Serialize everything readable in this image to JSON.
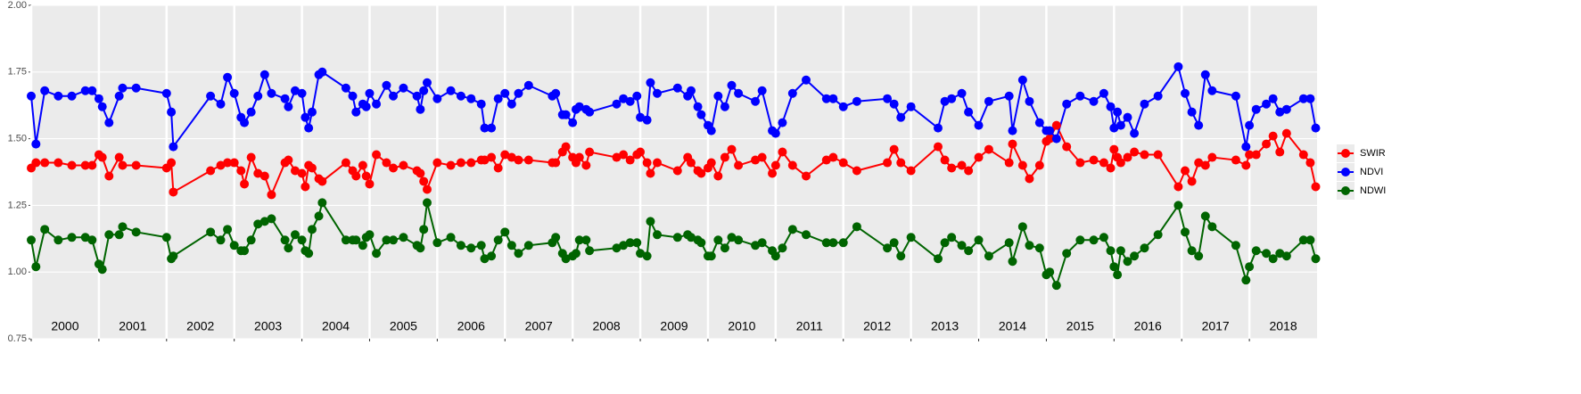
{
  "chart_data": {
    "type": "line",
    "x": [
      2000,
      2000.07,
      2000.2,
      2000.4,
      2000.6,
      2000.8,
      2000.9,
      2001,
      2001.05,
      2001.15,
      2001.3,
      2001.35,
      2001.55,
      2002,
      2002.07,
      2002.1,
      2002.65,
      2002.8,
      2002.9,
      2003,
      2003.1,
      2003.15,
      2003.25,
      2003.35,
      2003.45,
      2003.55,
      2003.75,
      2003.8,
      2003.9,
      2004,
      2004.05,
      2004.1,
      2004.15,
      2004.25,
      2004.3,
      2004.65,
      2004.75,
      2004.8,
      2004.9,
      2004.95,
      2005,
      2005.1,
      2005.25,
      2005.35,
      2005.5,
      2005.7,
      2005.75,
      2005.8,
      2005.85,
      2006,
      2006.2,
      2006.35,
      2006.5,
      2006.65,
      2006.7,
      2006.8,
      2006.9,
      2007,
      2007.1,
      2007.2,
      2007.35,
      2007.7,
      2007.75,
      2007.85,
      2007.9,
      2008,
      2008.05,
      2008.1,
      2008.2,
      2008.25,
      2008.65,
      2008.75,
      2008.85,
      2008.95,
      2009,
      2009.1,
      2009.15,
      2009.25,
      2009.55,
      2009.7,
      2009.75,
      2009.85,
      2009.9,
      2010,
      2010.05,
      2010.15,
      2010.25,
      2010.35,
      2010.45,
      2010.7,
      2010.8,
      2010.95,
      2011,
      2011.1,
      2011.25,
      2011.45,
      2011.75,
      2011.85,
      2012,
      2012.2,
      2012.65,
      2012.75,
      2012.85,
      2013,
      2013.4,
      2013.5,
      2013.6,
      2013.75,
      2013.85,
      2014,
      2014.15,
      2014.45,
      2014.5,
      2014.65,
      2014.75,
      2014.9,
      2015,
      2015.05,
      2015.15,
      2015.3,
      2015.5,
      2015.7,
      2015.85,
      2015.95,
      2016,
      2016.05,
      2016.1,
      2016.2,
      2016.3,
      2016.45,
      2016.65,
      2016.95,
      2017.05,
      2017.15,
      2017.25,
      2017.35,
      2017.45,
      2017.8,
      2017.95,
      2018,
      2018.1,
      2018.25,
      2018.35,
      2018.45,
      2018.55,
      2018.8,
      2018.9,
      2018.98
    ],
    "series": [
      {
        "name": "SWIR",
        "color": "#ff0000",
        "values": [
          1.39,
          1.41,
          1.41,
          1.41,
          1.4,
          1.4,
          1.4,
          1.44,
          1.43,
          1.36,
          1.43,
          1.4,
          1.4,
          1.39,
          1.41,
          1.3,
          1.38,
          1.4,
          1.41,
          1.41,
          1.38,
          1.33,
          1.43,
          1.37,
          1.36,
          1.29,
          1.41,
          1.42,
          1.38,
          1.37,
          1.32,
          1.4,
          1.39,
          1.35,
          1.34,
          1.41,
          1.38,
          1.36,
          1.4,
          1.36,
          1.33,
          1.44,
          1.41,
          1.39,
          1.4,
          1.38,
          1.37,
          1.34,
          1.31,
          1.41,
          1.4,
          1.41,
          1.41,
          1.42,
          1.42,
          1.43,
          1.39,
          1.44,
          1.43,
          1.42,
          1.42,
          1.41,
          1.41,
          1.45,
          1.47,
          1.43,
          1.41,
          1.43,
          1.4,
          1.45,
          1.43,
          1.44,
          1.42,
          1.44,
          1.45,
          1.41,
          1.37,
          1.41,
          1.38,
          1.43,
          1.41,
          1.38,
          1.37,
          1.39,
          1.41,
          1.36,
          1.43,
          1.46,
          1.4,
          1.42,
          1.43,
          1.37,
          1.4,
          1.45,
          1.4,
          1.36,
          1.42,
          1.43,
          1.41,
          1.38,
          1.41,
          1.46,
          1.41,
          1.38,
          1.47,
          1.42,
          1.39,
          1.4,
          1.38,
          1.43,
          1.46,
          1.41,
          1.48,
          1.4,
          1.35,
          1.4,
          1.49,
          1.5,
          1.55,
          1.47,
          1.41,
          1.42,
          1.41,
          1.39,
          1.46,
          1.43,
          1.41,
          1.43,
          1.45,
          1.44,
          1.44,
          1.32,
          1.38,
          1.34,
          1.41,
          1.4,
          1.43,
          1.42,
          1.4,
          1.44,
          1.44,
          1.48,
          1.51,
          1.45,
          1.52,
          1.44,
          1.41,
          1.32
        ]
      },
      {
        "name": "NDVI",
        "color": "#0000ff",
        "values": [
          1.66,
          1.48,
          1.68,
          1.66,
          1.66,
          1.68,
          1.68,
          1.65,
          1.62,
          1.56,
          1.66,
          1.69,
          1.69,
          1.67,
          1.6,
          1.47,
          1.66,
          1.63,
          1.73,
          1.67,
          1.58,
          1.56,
          1.6,
          1.66,
          1.74,
          1.67,
          1.65,
          1.62,
          1.68,
          1.67,
          1.58,
          1.54,
          1.6,
          1.74,
          1.75,
          1.69,
          1.66,
          1.6,
          1.63,
          1.62,
          1.67,
          1.63,
          1.7,
          1.66,
          1.69,
          1.66,
          1.61,
          1.68,
          1.71,
          1.65,
          1.68,
          1.66,
          1.65,
          1.63,
          1.54,
          1.54,
          1.65,
          1.67,
          1.63,
          1.67,
          1.7,
          1.66,
          1.67,
          1.59,
          1.59,
          1.56,
          1.61,
          1.62,
          1.61,
          1.6,
          1.63,
          1.65,
          1.64,
          1.66,
          1.58,
          1.57,
          1.71,
          1.67,
          1.69,
          1.66,
          1.68,
          1.62,
          1.59,
          1.55,
          1.53,
          1.66,
          1.62,
          1.7,
          1.67,
          1.64,
          1.68,
          1.53,
          1.52,
          1.56,
          1.67,
          1.72,
          1.65,
          1.65,
          1.62,
          1.64,
          1.65,
          1.63,
          1.58,
          1.62,
          1.54,
          1.64,
          1.65,
          1.67,
          1.6,
          1.55,
          1.64,
          1.66,
          1.53,
          1.72,
          1.64,
          1.56,
          1.53,
          1.53,
          1.5,
          1.63,
          1.66,
          1.64,
          1.67,
          1.62,
          1.54,
          1.6,
          1.55,
          1.58,
          1.52,
          1.63,
          1.66,
          1.77,
          1.67,
          1.6,
          1.55,
          1.74,
          1.68,
          1.66,
          1.47,
          1.55,
          1.61,
          1.63,
          1.65,
          1.6,
          1.61,
          1.65,
          1.65,
          1.54
        ]
      },
      {
        "name": "NDWI",
        "color": "#006400",
        "values": [
          1.12,
          1.02,
          1.16,
          1.12,
          1.13,
          1.13,
          1.12,
          1.03,
          1.01,
          1.14,
          1.14,
          1.17,
          1.15,
          1.13,
          1.05,
          1.06,
          1.15,
          1.12,
          1.16,
          1.1,
          1.08,
          1.08,
          1.12,
          1.18,
          1.19,
          1.2,
          1.12,
          1.09,
          1.14,
          1.12,
          1.08,
          1.07,
          1.16,
          1.21,
          1.26,
          1.12,
          1.12,
          1.12,
          1.1,
          1.13,
          1.14,
          1.07,
          1.12,
          1.12,
          1.13,
          1.1,
          1.09,
          1.16,
          1.26,
          1.11,
          1.13,
          1.1,
          1.09,
          1.1,
          1.05,
          1.06,
          1.12,
          1.15,
          1.1,
          1.07,
          1.1,
          1.11,
          1.13,
          1.07,
          1.05,
          1.06,
          1.07,
          1.12,
          1.12,
          1.08,
          1.09,
          1.1,
          1.11,
          1.11,
          1.07,
          1.06,
          1.19,
          1.14,
          1.13,
          1.14,
          1.13,
          1.12,
          1.11,
          1.06,
          1.06,
          1.12,
          1.09,
          1.13,
          1.12,
          1.1,
          1.11,
          1.08,
          1.06,
          1.09,
          1.16,
          1.14,
          1.11,
          1.11,
          1.11,
          1.17,
          1.09,
          1.11,
          1.06,
          1.13,
          1.05,
          1.11,
          1.13,
          1.1,
          1.08,
          1.12,
          1.06,
          1.11,
          1.04,
          1.17,
          1.1,
          1.09,
          0.99,
          1.0,
          0.95,
          1.07,
          1.12,
          1.12,
          1.13,
          1.08,
          1.02,
          0.99,
          1.08,
          1.04,
          1.06,
          1.09,
          1.14,
          1.25,
          1.15,
          1.08,
          1.06,
          1.21,
          1.17,
          1.1,
          0.97,
          1.02,
          1.08,
          1.07,
          1.05,
          1.07,
          1.06,
          1.12,
          1.12,
          1.05
        ]
      }
    ],
    "year_labels": [
      2000,
      2001,
      2002,
      2003,
      2004,
      2005,
      2006,
      2007,
      2008,
      2009,
      2010,
      2011,
      2012,
      2013,
      2014,
      2015,
      2016,
      2017,
      2018
    ],
    "xlim": [
      2000,
      2019
    ],
    "ylim": [
      0.75,
      2.0
    ],
    "yticks": [
      0.75,
      {
        "value": 1.0,
        "label": "1.00"
      },
      1.25,
      {
        "value": 1.5,
        "label": "1.50"
      },
      1.75,
      {
        "value": 2.0,
        "label": "2.00"
      }
    ],
    "grid": true,
    "legend": "right"
  }
}
